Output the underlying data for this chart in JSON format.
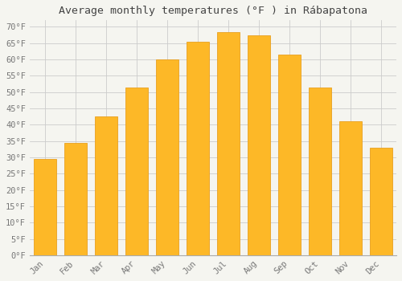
{
  "title": "Average monthly temperatures (°F ) in Rábapatona",
  "months": [
    "Jan",
    "Feb",
    "Mar",
    "Apr",
    "May",
    "Jun",
    "Jul",
    "Aug",
    "Sep",
    "Oct",
    "Nov",
    "Dec"
  ],
  "values": [
    29.5,
    34.5,
    42.5,
    51.5,
    60.0,
    65.5,
    68.5,
    67.5,
    61.5,
    51.5,
    41.0,
    33.0
  ],
  "bar_color": "#FDB827",
  "bar_edge_color": "#E8A020",
  "background_color": "#f5f5f0",
  "grid_color": "#cccccc",
  "text_color": "#777777",
  "ylim": [
    0,
    72
  ],
  "yticks": [
    0,
    5,
    10,
    15,
    20,
    25,
    30,
    35,
    40,
    45,
    50,
    55,
    60,
    65,
    70
  ],
  "title_fontsize": 9.5,
  "tick_fontsize": 7.5,
  "font_family": "monospace"
}
